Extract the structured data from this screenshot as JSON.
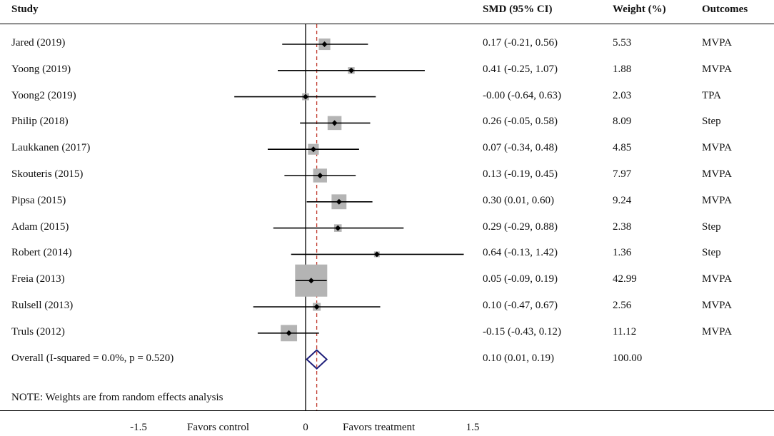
{
  "headers": {
    "study": "Study",
    "smd": "SMD (95% CI)",
    "weight": "Weight (%)",
    "outcomes": "Outcomes"
  },
  "chart_data": {
    "type": "forest",
    "xlim": [
      -1.5,
      1.5
    ],
    "null_line": 0,
    "overall_line": 0.1,
    "studies": [
      {
        "label": "Jared (2019)",
        "smd": 0.17,
        "lo": -0.21,
        "hi": 0.56,
        "ci_text": "0.17 (-0.21, 0.56)",
        "weight": 5.53,
        "weight_text": "5.53",
        "outcome": "MVPA"
      },
      {
        "label": "Yoong  (2019)",
        "smd": 0.41,
        "lo": -0.25,
        "hi": 1.07,
        "ci_text": "0.41 (-0.25, 1.07)",
        "weight": 1.88,
        "weight_text": "1.88",
        "outcome": "MVPA"
      },
      {
        "label": "Yoong2  (2019)",
        "smd": -0.0,
        "lo": -0.64,
        "hi": 0.63,
        "ci_text": "-0.00 (-0.64, 0.63)",
        "weight": 2.03,
        "weight_text": "2.03",
        "outcome": "TPA"
      },
      {
        "label": "Philip  (2018)",
        "smd": 0.26,
        "lo": -0.05,
        "hi": 0.58,
        "ci_text": "0.26 (-0.05, 0.58)",
        "weight": 8.09,
        "weight_text": "8.09",
        "outcome": "Step"
      },
      {
        "label": "Laukkanen (2017)",
        "smd": 0.07,
        "lo": -0.34,
        "hi": 0.48,
        "ci_text": "0.07 (-0.34, 0.48)",
        "weight": 4.85,
        "weight_text": "4.85",
        "outcome": "MVPA"
      },
      {
        "label": "Skouteris (2015)",
        "smd": 0.13,
        "lo": -0.19,
        "hi": 0.45,
        "ci_text": "0.13 (-0.19, 0.45)",
        "weight": 7.97,
        "weight_text": "7.97",
        "outcome": "MVPA"
      },
      {
        "label": "Pipsa  (2015)",
        "smd": 0.3,
        "lo": 0.01,
        "hi": 0.6,
        "ci_text": "0.30 (0.01, 0.60)",
        "weight": 9.24,
        "weight_text": "9.24",
        "outcome": "MVPA"
      },
      {
        "label": "Adam  (2015)",
        "smd": 0.29,
        "lo": -0.29,
        "hi": 0.88,
        "ci_text": "0.29 (-0.29, 0.88)",
        "weight": 2.38,
        "weight_text": "2.38",
        "outcome": "Step"
      },
      {
        "label": "Robert  (2014)",
        "smd": 0.64,
        "lo": -0.13,
        "hi": 1.42,
        "ci_text": "0.64 (-0.13, 1.42)",
        "weight": 1.36,
        "weight_text": "1.36",
        "outcome": "Step"
      },
      {
        "label": "Freia (2013)",
        "smd": 0.05,
        "lo": -0.09,
        "hi": 0.19,
        "ci_text": "0.05 (-0.09, 0.19)",
        "weight": 42.99,
        "weight_text": "42.99",
        "outcome": "MVPA"
      },
      {
        "label": "Rulsell (2013)",
        "smd": 0.1,
        "lo": -0.47,
        "hi": 0.67,
        "ci_text": "0.10 (-0.47, 0.67)",
        "weight": 2.56,
        "weight_text": "2.56",
        "outcome": "MVPA"
      },
      {
        "label": "Truls (2012)",
        "smd": -0.15,
        "lo": -0.43,
        "hi": 0.12,
        "ci_text": "-0.15 (-0.43, 0.12)",
        "weight": 11.12,
        "weight_text": "11.12",
        "outcome": "MVPA"
      }
    ],
    "overall": {
      "label": "Overall  (I-squared = 0.0%, p = 0.520)",
      "smd": 0.1,
      "lo": 0.01,
      "hi": 0.19,
      "ci_text": "0.10 (0.01, 0.19)",
      "weight_text": "100.00"
    },
    "note": "NOTE: Weights are from random effects analysis",
    "x_ticks": [
      {
        "value": -1.5,
        "label": "-1.5"
      },
      {
        "value": 0,
        "label": "0"
      },
      {
        "value": 1.5,
        "label": "1.5"
      }
    ],
    "favors_control": "Favors control",
    "favors_treatment": "Favors treatment",
    "colors": {
      "box": "#b4b4b4",
      "overall_line": "#c0392b",
      "diamond": "#1f1f7a"
    }
  }
}
